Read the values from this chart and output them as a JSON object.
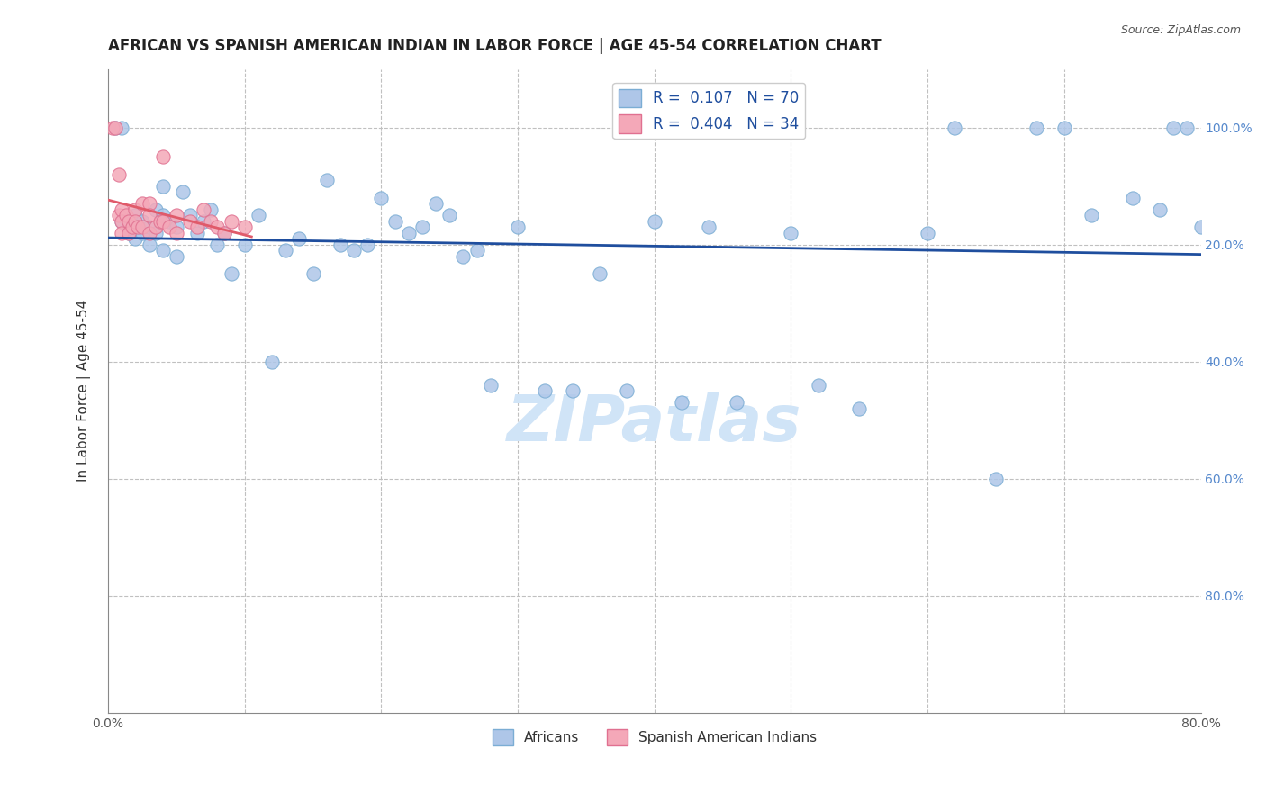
{
  "title": "AFRICAN VS SPANISH AMERICAN INDIAN IN LABOR FORCE | AGE 45-54 CORRELATION CHART",
  "source": "Source: ZipAtlas.com",
  "ylabel": "In Labor Force | Age 45-54",
  "xlim": [
    0.0,
    0.8
  ],
  "ylim": [
    0.0,
    1.1
  ],
  "african_R": 0.107,
  "african_N": 70,
  "spanish_R": 0.404,
  "spanish_N": 34,
  "african_line_color": "#1f4e9e",
  "spanish_line_color": "#e05a6a",
  "watermark_color": "#d0e4f7",
  "african_scatter_color": "#aec6e8",
  "african_scatter_edge": "#7badd4",
  "spanish_scatter_color": "#f4a8b8",
  "spanish_scatter_edge": "#e07090",
  "african_x": [
    0.005,
    0.01,
    0.01,
    0.015,
    0.015,
    0.02,
    0.02,
    0.02,
    0.025,
    0.025,
    0.03,
    0.03,
    0.035,
    0.035,
    0.04,
    0.04,
    0.04,
    0.045,
    0.05,
    0.05,
    0.055,
    0.06,
    0.065,
    0.07,
    0.075,
    0.08,
    0.085,
    0.09,
    0.1,
    0.11,
    0.12,
    0.13,
    0.14,
    0.15,
    0.16,
    0.17,
    0.18,
    0.19,
    0.2,
    0.21,
    0.22,
    0.23,
    0.24,
    0.25,
    0.26,
    0.27,
    0.28,
    0.3,
    0.32,
    0.34,
    0.36,
    0.38,
    0.4,
    0.42,
    0.44,
    0.46,
    0.5,
    0.52,
    0.55,
    0.6,
    0.62,
    0.65,
    0.68,
    0.7,
    0.72,
    0.75,
    0.77,
    0.78,
    0.79,
    0.8
  ],
  "african_y": [
    1.0,
    1.0,
    0.84,
    0.83,
    0.82,
    0.85,
    0.83,
    0.81,
    0.84,
    0.82,
    0.83,
    0.8,
    0.86,
    0.82,
    0.9,
    0.85,
    0.79,
    0.84,
    0.83,
    0.78,
    0.89,
    0.85,
    0.82,
    0.84,
    0.86,
    0.8,
    0.82,
    0.75,
    0.8,
    0.85,
    0.6,
    0.79,
    0.81,
    0.75,
    0.91,
    0.8,
    0.79,
    0.8,
    0.88,
    0.84,
    0.82,
    0.83,
    0.87,
    0.85,
    0.78,
    0.79,
    0.56,
    0.83,
    0.55,
    0.55,
    0.75,
    0.55,
    0.84,
    0.53,
    0.83,
    0.53,
    0.82,
    0.56,
    0.52,
    0.82,
    1.0,
    0.4,
    1.0,
    1.0,
    0.85,
    0.88,
    0.86,
    1.0,
    1.0,
    0.83
  ],
  "spanish_x": [
    0.003,
    0.005,
    0.008,
    0.008,
    0.01,
    0.01,
    0.01,
    0.013,
    0.015,
    0.015,
    0.018,
    0.02,
    0.02,
    0.022,
    0.025,
    0.025,
    0.03,
    0.03,
    0.03,
    0.035,
    0.038,
    0.04,
    0.04,
    0.045,
    0.05,
    0.05,
    0.06,
    0.065,
    0.07,
    0.075,
    0.08,
    0.085,
    0.09,
    0.1
  ],
  "spanish_y": [
    1.0,
    1.0,
    0.92,
    0.85,
    0.86,
    0.84,
    0.82,
    0.85,
    0.84,
    0.82,
    0.83,
    0.86,
    0.84,
    0.83,
    0.87,
    0.83,
    0.87,
    0.85,
    0.82,
    0.83,
    0.84,
    0.95,
    0.84,
    0.83,
    0.85,
    0.82,
    0.84,
    0.83,
    0.86,
    0.84,
    0.83,
    0.82,
    0.84,
    0.83
  ]
}
